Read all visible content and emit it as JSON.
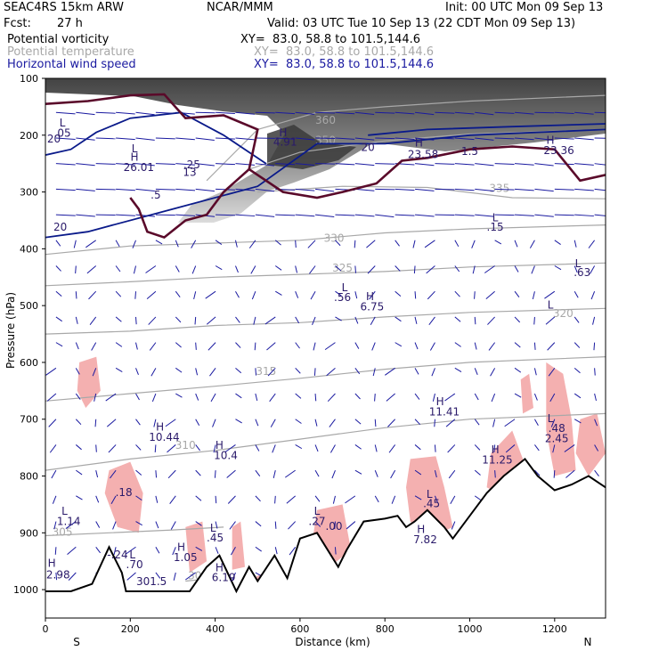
{
  "header": {
    "model": "SEAC4RS 15km ARW",
    "org": "NCAR/MMM",
    "init": "Init: 00 UTC Mon 09 Sep 13",
    "fcst_label": "Fcst:",
    "fcst_value": "27 h",
    "valid": "Valid: 03 UTC Tue 10 Sep 13 (22 CDT Mon 09 Sep 13)"
  },
  "legend": [
    {
      "name": "Potential vorticity",
      "xy": "XY=  83.0, 58.8 to 101.5,144.6",
      "color": "#000000"
    },
    {
      "name": "Potential temperature",
      "xy": "XY=  83.0, 58.8 to 101.5,144.6",
      "color": "#a8a8a8"
    },
    {
      "name": "Horizontal wind speed",
      "xy": "XY=  83.0, 58.8 to 101.5,144.6",
      "color": "#1a1aa0"
    }
  ],
  "chart_data": {
    "type": "cross-section",
    "xlabel": "Distance (km)",
    "ylabel": "Pressure (hPa)",
    "xlim": [
      0,
      1320
    ],
    "ylim": [
      1050,
      100
    ],
    "x_ticks": [
      0,
      200,
      400,
      600,
      800,
      1000,
      1200
    ],
    "y_ticks": [
      100,
      200,
      300,
      400,
      500,
      600,
      700,
      800,
      900,
      1000
    ],
    "endpoint_labels": {
      "left": "S",
      "right": "N"
    },
    "colors": {
      "rh_shade": "#f4b0b0",
      "pv_contour": "#5a0a2a",
      "wind": "#1a1aa0",
      "theta": "#a8a8a8",
      "terrain": "#000000"
    },
    "theta_isentropes": [
      {
        "label": "305",
        "points": [
          [
            0,
            905
          ],
          [
            150,
            900
          ],
          [
            300,
            895
          ],
          [
            420,
            890
          ]
        ],
        "label_at": [
          40,
          905
        ]
      },
      {
        "label": "305",
        "points": [
          [
            330,
            985
          ],
          [
            400,
            980
          ]
        ],
        "label_at": [
          360,
          982
        ]
      },
      {
        "label": "310",
        "points": [
          [
            0,
            790
          ],
          [
            200,
            770
          ],
          [
            400,
            755
          ],
          [
            600,
            735
          ],
          [
            800,
            715
          ],
          [
            1000,
            700
          ],
          [
            1320,
            690
          ]
        ],
        "label_at": [
          330,
          752
        ]
      },
      {
        "label": "315",
        "points": [
          [
            0,
            668
          ],
          [
            200,
            655
          ],
          [
            400,
            642
          ],
          [
            600,
            628
          ],
          [
            800,
            612
          ],
          [
            1000,
            600
          ],
          [
            1320,
            590
          ]
        ],
        "label_at": [
          520,
          622
        ]
      },
      {
        "label": "320",
        "points": [
          [
            0,
            550
          ],
          [
            200,
            545
          ],
          [
            400,
            535
          ],
          [
            600,
            530
          ],
          [
            800,
            520
          ],
          [
            1000,
            512
          ],
          [
            1320,
            505
          ]
        ],
        "label_at": [
          1220,
          520
        ]
      },
      {
        "label": "325",
        "points": [
          [
            0,
            465
          ],
          [
            200,
            458
          ],
          [
            400,
            450
          ],
          [
            600,
            445
          ],
          [
            800,
            440
          ],
          [
            1000,
            432
          ],
          [
            1320,
            425
          ]
        ],
        "label_at": [
          700,
          440
        ]
      },
      {
        "label": "330",
        "points": [
          [
            0,
            410
          ],
          [
            200,
            395
          ],
          [
            400,
            390
          ],
          [
            600,
            385
          ],
          [
            800,
            372
          ],
          [
            1000,
            365
          ],
          [
            1320,
            358
          ]
        ],
        "label_at": [
          680,
          388
        ]
      },
      {
        "label": "335",
        "points": [
          [
            500,
            300
          ],
          [
            700,
            290
          ],
          [
            900,
            292
          ],
          [
            1100,
            310
          ],
          [
            1320,
            312
          ]
        ],
        "label_at": [
          1070,
          300
        ]
      },
      {
        "label": "350",
        "points": [
          [
            480,
            260
          ],
          [
            600,
            230
          ],
          [
            800,
            210
          ],
          [
            1000,
            198
          ],
          [
            1320,
            190
          ]
        ],
        "label_at": [
          660,
          215
        ]
      },
      {
        "label": "360",
        "points": [
          [
            380,
            280
          ],
          [
            500,
            190
          ],
          [
            640,
            160
          ],
          [
            800,
            150
          ],
          [
            1000,
            140
          ],
          [
            1320,
            130
          ]
        ],
        "label_at": [
          660,
          180
        ]
      }
    ],
    "wind_speed_contours": [
      {
        "label": "20",
        "points": [
          [
            0,
            380
          ],
          [
            100,
            370
          ],
          [
            300,
            330
          ],
          [
            500,
            290
          ],
          [
            640,
            215
          ],
          [
            800,
            215
          ],
          [
            1000,
            200
          ],
          [
            1320,
            190
          ]
        ]
      },
      {
        "label": "20",
        "points": [
          [
            0,
            235
          ],
          [
            60,
            225
          ],
          [
            120,
            195
          ],
          [
            200,
            170
          ],
          [
            320,
            160
          ],
          [
            420,
            200
          ],
          [
            520,
            250
          ]
        ]
      },
      {
        "label": "20",
        "points": [
          [
            760,
            200
          ],
          [
            900,
            190
          ],
          [
            1100,
            185
          ],
          [
            1320,
            180
          ]
        ]
      }
    ],
    "pv_contours": [
      {
        "level": "1.5",
        "points": [
          [
            0,
            145
          ],
          [
            100,
            140
          ],
          [
            200,
            130
          ],
          [
            280,
            128
          ],
          [
            300,
            145
          ],
          [
            330,
            170
          ],
          [
            420,
            165
          ],
          [
            500,
            190
          ],
          [
            480,
            260
          ],
          [
            450,
            280
          ],
          [
            420,
            300
          ],
          [
            380,
            340
          ],
          [
            330,
            350
          ],
          [
            280,
            380
          ],
          [
            240,
            370
          ],
          [
            220,
            330
          ],
          [
            200,
            310
          ]
        ]
      },
      {
        "level": "1.5",
        "points": [
          [
            480,
            260
          ],
          [
            560,
            300
          ],
          [
            640,
            310
          ],
          [
            700,
            300
          ],
          [
            780,
            285
          ],
          [
            840,
            245
          ],
          [
            900,
            240
          ],
          [
            1000,
            225
          ],
          [
            1100,
            220
          ],
          [
            1200,
            225
          ],
          [
            1260,
            280
          ],
          [
            1320,
            270
          ]
        ]
      }
    ],
    "labels": [
      {
        "text": "L",
        "x": 40,
        "p": 185
      },
      {
        "text": ".05",
        "x": 40,
        "p": 203
      },
      {
        "text": "20",
        "x": 20,
        "p": 213
      },
      {
        "text": "H",
        "x": 210,
        "p": 245
      },
      {
        "text": "26.01",
        "x": 220,
        "p": 263
      },
      {
        "text": ".25",
        "x": 345,
        "p": 258
      },
      {
        "text": "13",
        "x": 340,
        "p": 272
      },
      {
        "text": ".5",
        "x": 260,
        "p": 312
      },
      {
        "text": "20",
        "x": 35,
        "p": 368
      },
      {
        "text": "H",
        "x": 560,
        "p": 202
      },
      {
        "text": "4.91",
        "x": 565,
        "p": 218
      },
      {
        "text": "H",
        "x": 880,
        "p": 220
      },
      {
        "text": "23.58",
        "x": 890,
        "p": 240
      },
      {
        "text": "1.5",
        "x": 1000,
        "p": 235
      },
      {
        "text": "20",
        "x": 760,
        "p": 228
      },
      {
        "text": "H",
        "x": 1190,
        "p": 215
      },
      {
        "text": "23.36",
        "x": 1210,
        "p": 233
      },
      {
        "text": "L",
        "x": 1060,
        "p": 352
      },
      {
        "text": ".15",
        "x": 1060,
        "p": 368
      },
      {
        "text": "L",
        "x": 1255,
        "p": 432
      },
      {
        "text": ".63",
        "x": 1265,
        "p": 448
      },
      {
        "text": "L",
        "x": 705,
        "p": 475
      },
      {
        "text": ".56",
        "x": 700,
        "p": 492
      },
      {
        "text": "H",
        "x": 765,
        "p": 490
      },
      {
        "text": "6.75",
        "x": 770,
        "p": 508
      },
      {
        "text": "H",
        "x": 930,
        "p": 675
      },
      {
        "text": "11.41",
        "x": 940,
        "p": 693
      },
      {
        "text": "H",
        "x": 270,
        "p": 720
      },
      {
        "text": "10.44",
        "x": 280,
        "p": 738
      },
      {
        "text": "H",
        "x": 410,
        "p": 752
      },
      {
        "text": "10.4",
        "x": 425,
        "p": 770
      },
      {
        "text": "H",
        "x": 1060,
        "p": 760
      },
      {
        "text": "11.25",
        "x": 1065,
        "p": 778
      },
      {
        "text": "L",
        "x": 1190,
        "p": 705
      },
      {
        "text": ".48",
        "x": 1205,
        "p": 722
      },
      {
        "text": "2.45",
        "x": 1205,
        "p": 740
      },
      {
        "text": "L",
        "x": 1190,
        "p": 505
      },
      {
        "text": "L",
        "x": 210,
        "p": 230
      },
      {
        "text": ".18",
        "x": 185,
        "p": 835
      },
      {
        "text": "L",
        "x": 45,
        "p": 868
      },
      {
        "text": "1.14",
        "x": 55,
        "p": 886
      },
      {
        "text": "L",
        "x": 640,
        "p": 868
      },
      {
        "text": ".27",
        "x": 640,
        "p": 886
      },
      {
        "text": ".00",
        "x": 680,
        "p": 895
      },
      {
        "text": "L",
        "x": 905,
        "p": 838
      },
      {
        "text": ".45",
        "x": 910,
        "p": 855
      },
      {
        "text": "H",
        "x": 885,
        "p": 900
      },
      {
        "text": "7.82",
        "x": 895,
        "p": 918
      },
      {
        "text": "L",
        "x": 395,
        "p": 898
      },
      {
        "text": ".45",
        "x": 400,
        "p": 915
      },
      {
        "text": "H",
        "x": 320,
        "p": 932
      },
      {
        "text": "1.05",
        "x": 330,
        "p": 950
      },
      {
        "text": "L",
        "x": 205,
        "p": 945
      },
      {
        "text": ".70",
        "x": 210,
        "p": 962
      },
      {
        "text": "-.24",
        "x": 170,
        "p": 945
      },
      {
        "text": "H",
        "x": 410,
        "p": 968
      },
      {
        "text": "6.19",
        "x": 420,
        "p": 985
      },
      {
        "text": "H",
        "x": 15,
        "p": 960
      },
      {
        "text": "2.98",
        "x": 30,
        "p": 980
      },
      {
        "text": "301.5",
        "x": 250,
        "p": 992
      }
    ]
  }
}
